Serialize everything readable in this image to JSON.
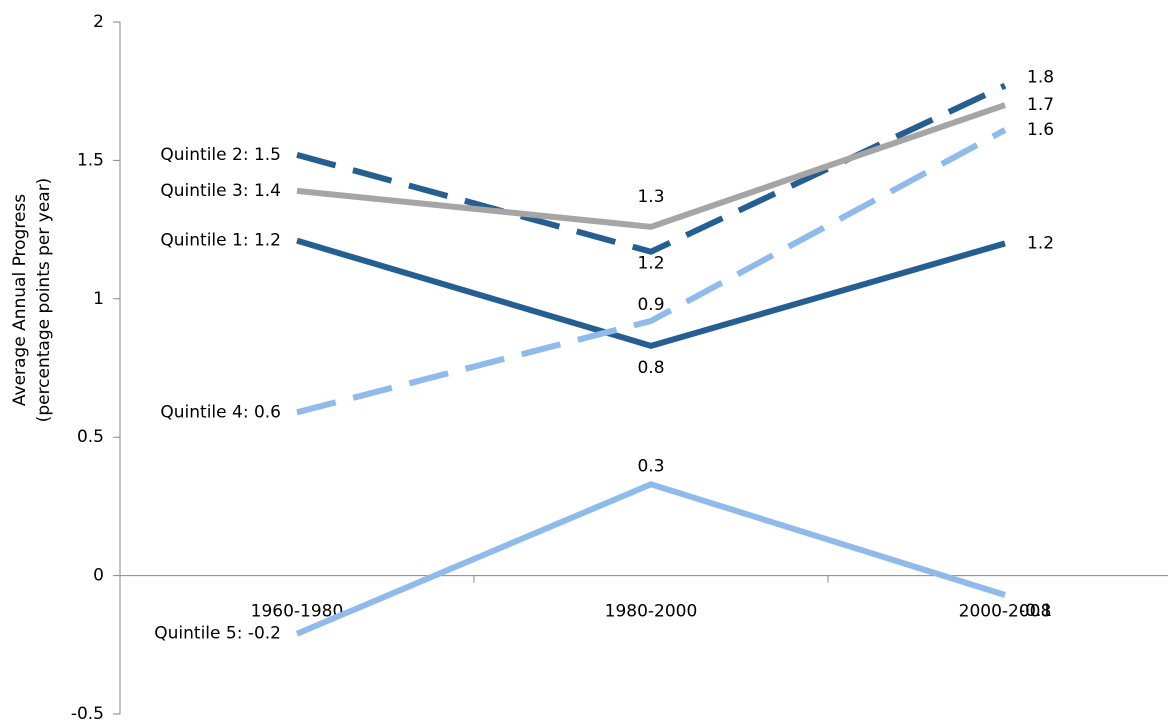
{
  "chart_data": {
    "type": "line",
    "ylabel": [
      "Average Annual Progress",
      "(percentage points per year)"
    ],
    "categories": [
      "1960-1980",
      "1980-2000",
      "2000-2008"
    ],
    "ylim": [
      -0.5,
      2
    ],
    "yticks": [
      -0.5,
      0,
      0.5,
      1,
      1.5,
      2
    ],
    "series": [
      {
        "color": "#255e91",
        "dashed": false,
        "values": [
          1.21,
          0.83,
          1.2
        ],
        "value_labels": [
          "Quintile 1: 1.2",
          "0.8",
          "1.2"
        ]
      },
      {
        "color": "#255e91",
        "dashed": true,
        "values": [
          1.52,
          1.17,
          1.77
        ],
        "value_labels": [
          "Quintile 2: 1.5",
          "1.2",
          "1.8"
        ]
      },
      {
        "color": "#a5a5a5",
        "dashed": false,
        "values": [
          1.39,
          1.26,
          1.7
        ],
        "value_labels": [
          "Quintile 3: 1.4",
          "1.3",
          "1.7"
        ]
      },
      {
        "color": "#8ebbea",
        "dashed": true,
        "values": [
          0.59,
          0.92,
          1.61
        ],
        "value_labels": [
          "Quintile 4: 0.6",
          "0.9",
          "1.6"
        ]
      },
      {
        "color": "#8ebbea",
        "dashed": false,
        "values": [
          -0.21,
          0.33,
          -0.07
        ],
        "value_labels": [
          "Quintile 5: -0.2",
          "0.3",
          "-0.1"
        ]
      }
    ]
  }
}
